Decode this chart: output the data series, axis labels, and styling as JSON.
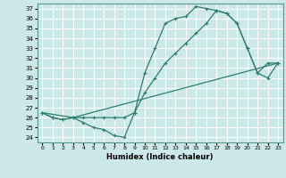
{
  "title": "",
  "xlabel": "Humidex (Indice chaleur)",
  "bg_color": "#cce8e8",
  "grid_color": "#ffffff",
  "line_color": "#2e7d6e",
  "xlim": [
    -0.5,
    23.5
  ],
  "ylim": [
    23.5,
    37.5
  ],
  "xticks": [
    0,
    1,
    2,
    3,
    4,
    5,
    6,
    7,
    8,
    9,
    10,
    11,
    12,
    13,
    14,
    15,
    16,
    17,
    18,
    19,
    20,
    21,
    22,
    23
  ],
  "yticks": [
    24,
    25,
    26,
    27,
    28,
    29,
    30,
    31,
    32,
    33,
    34,
    35,
    36,
    37
  ],
  "series1_x": [
    0,
    1,
    2,
    3,
    4,
    5,
    6,
    7,
    8,
    9,
    10,
    11,
    12,
    13,
    14,
    15,
    16,
    17,
    18,
    19,
    20,
    21,
    22,
    23
  ],
  "series1_y": [
    26.5,
    26.0,
    25.8,
    26.0,
    25.5,
    25.0,
    24.8,
    24.2,
    24.0,
    26.5,
    30.5,
    33.0,
    35.5,
    36.0,
    36.2,
    37.2,
    37.0,
    36.8,
    36.5,
    35.5,
    33.0,
    30.5,
    30.0,
    31.5
  ],
  "series2_x": [
    0,
    1,
    2,
    3,
    4,
    5,
    6,
    7,
    8,
    9,
    10,
    11,
    12,
    13,
    14,
    15,
    16,
    17,
    18,
    19,
    20,
    21,
    22,
    23
  ],
  "series2_y": [
    26.5,
    26.0,
    25.8,
    26.0,
    26.0,
    26.0,
    26.0,
    26.0,
    26.0,
    26.5,
    28.5,
    30.0,
    31.5,
    32.5,
    33.5,
    34.5,
    35.5,
    36.8,
    36.5,
    35.5,
    33.0,
    30.5,
    31.5,
    31.5
  ],
  "series3_x": [
    0,
    3,
    23
  ],
  "series3_y": [
    26.5,
    26.0,
    31.5
  ]
}
